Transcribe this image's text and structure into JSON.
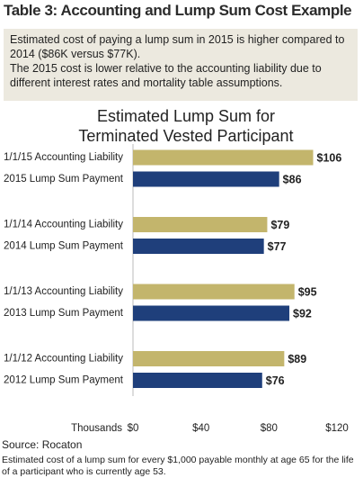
{
  "header": {
    "title": "Table 3: Accounting and Lump Sum Cost Example"
  },
  "note": {
    "paragraphs": [
      "Estimated cost of paying a lump sum in 2015 is higher compared to 2014 ($86K versus $77K).",
      "The 2015 cost is lower relative to the accounting liability due to different interest rates and mortality table assumptions."
    ]
  },
  "chart_data": {
    "type": "bar",
    "orientation": "horizontal",
    "title": "Estimated Lump Sum for Terminated Vested Participant",
    "categories": [
      "1/1/15 Accounting Liability",
      "2015 Lump Sum Payment",
      "1/1/14 Accounting Liability",
      "2014 Lump Sum Payment",
      "1/1/13 Accounting Liability",
      "2013 Lump Sum Payment",
      "1/1/12 Accounting Liability",
      "2012 Lump Sum Payment"
    ],
    "values": [
      106,
      86,
      79,
      77,
      95,
      92,
      89,
      76
    ],
    "value_labels": [
      "$106",
      "$86",
      "$79",
      "$77",
      "$95",
      "$92",
      "$89",
      "$76"
    ],
    "colors": [
      "#c3b56c",
      "#1f3f7b",
      "#c3b56c",
      "#1f3f7b",
      "#c3b56c",
      "#1f3f7b",
      "#c3b56c",
      "#1f3f7b"
    ],
    "xlim": [
      0,
      120
    ],
    "xticks": [
      {
        "value": 0,
        "label": "$0"
      },
      {
        "value": 40,
        "label": "$40"
      },
      {
        "value": 80,
        "label": "$80"
      },
      {
        "value": 120,
        "label": "$120"
      }
    ],
    "xlabel": "Thousands"
  },
  "source": "Source: Rocaton",
  "footnote": "Estimated cost of a lump sum for every $1,000 payable monthly at age 65 for the life of a participant who is currently age 53."
}
